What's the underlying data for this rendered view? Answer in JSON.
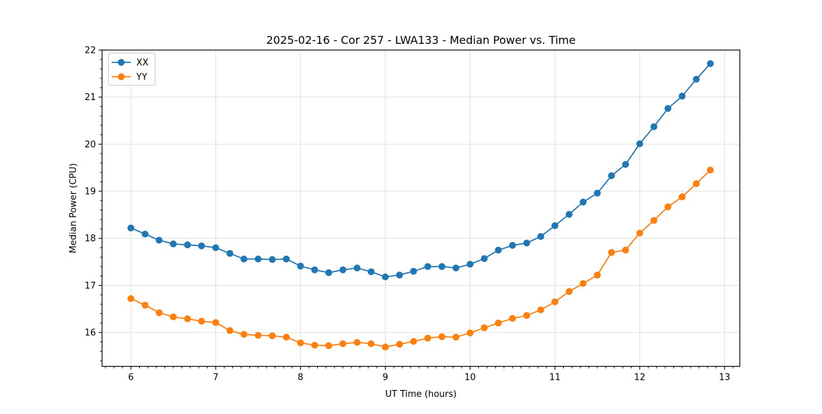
{
  "page": {
    "background": "#ffffff"
  },
  "chart_data": {
    "type": "line",
    "title": "2025-02-16 - Cor 257 - LWA133 - Median Power vs. Time",
    "xlabel": "UT Time (hours)",
    "ylabel": "Median Power (CPU)",
    "xlim": [
      5.66,
      13.18
    ],
    "ylim": [
      15.28,
      22.0
    ],
    "x_ticks": [
      6,
      7,
      8,
      9,
      10,
      11,
      12,
      13
    ],
    "y_ticks": [
      16,
      17,
      18,
      19,
      20,
      21,
      22
    ],
    "x_minor_step": 0.1,
    "y_minor_step": 0.2,
    "grid": "major-both",
    "grid_color": "#e0e0e0",
    "legend_position": "upper-left",
    "x": [
      6,
      6.167,
      6.333,
      6.5,
      6.667,
      6.833,
      7,
      7.167,
      7.333,
      7.5,
      7.667,
      7.833,
      8,
      8.167,
      8.333,
      8.5,
      8.667,
      8.833,
      9,
      9.167,
      9.333,
      9.5,
      9.667,
      9.833,
      10,
      10.167,
      10.333,
      10.5,
      10.667,
      10.833,
      11,
      11.167,
      11.333,
      11.5,
      11.667,
      11.833,
      12,
      12.167,
      12.333,
      12.5,
      12.667,
      12.833
    ],
    "series": [
      {
        "name": "XX",
        "color": "#1f77b4",
        "values": [
          18.22,
          18.09,
          17.96,
          17.88,
          17.86,
          17.84,
          17.8,
          17.68,
          17.56,
          17.56,
          17.55,
          17.56,
          17.41,
          17.33,
          17.27,
          17.33,
          17.37,
          17.29,
          17.18,
          17.22,
          17.3,
          17.4,
          17.4,
          17.37,
          17.45,
          17.57,
          17.75,
          17.85,
          17.9,
          18.04,
          18.27,
          18.51,
          18.77,
          18.96,
          19.33,
          19.57,
          20.01,
          20.37,
          20.76,
          21.02,
          21.38,
          21.71
        ]
      },
      {
        "name": "YY",
        "color": "#ff7f0e",
        "values": [
          16.72,
          16.58,
          16.42,
          16.33,
          16.29,
          16.24,
          16.21,
          16.04,
          15.96,
          15.94,
          15.93,
          15.9,
          15.78,
          15.73,
          15.72,
          15.76,
          15.79,
          15.76,
          15.69,
          15.75,
          15.81,
          15.88,
          15.91,
          15.9,
          15.99,
          16.1,
          16.2,
          16.3,
          16.36,
          16.48,
          16.65,
          16.87,
          17.04,
          17.22,
          17.7,
          17.75,
          18.11,
          18.38,
          18.67,
          18.88,
          19.16,
          19.45
        ]
      }
    ]
  }
}
